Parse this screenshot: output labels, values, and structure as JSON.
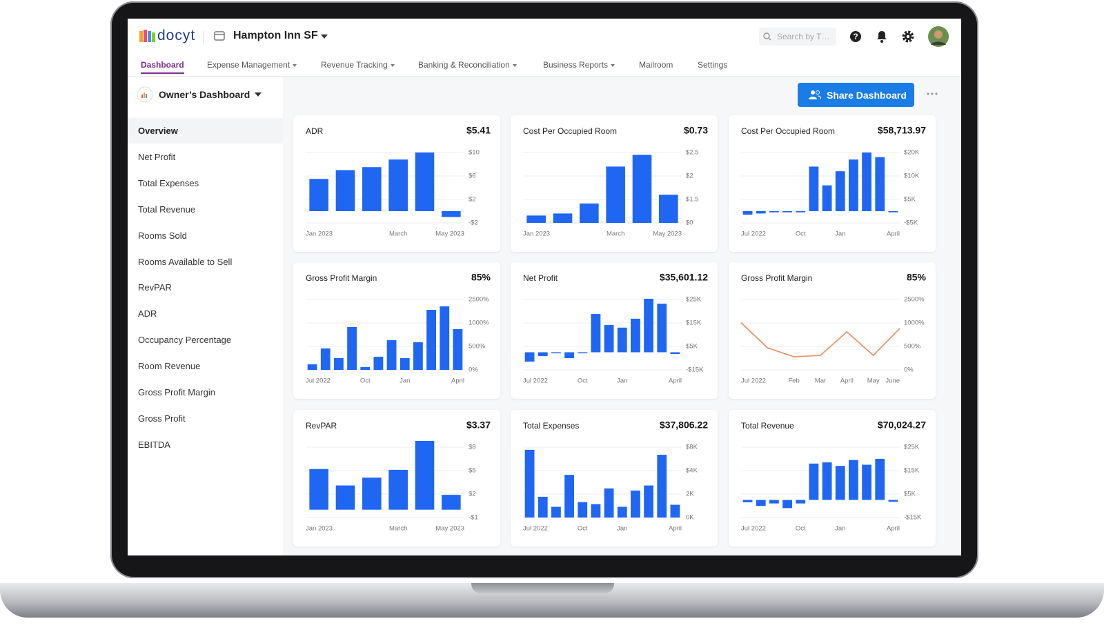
{
  "header": {
    "brand": "docyt",
    "property": "Hampton Inn SF",
    "search_placeholder": "Search by T…"
  },
  "nav": [
    "Dashboard",
    "Expense Management",
    "Revenue Tracking",
    "Banking & Reconciliation",
    "Business Reports",
    "Mailroom",
    "Settings"
  ],
  "sidebar": {
    "dashboard": "Owner’s Dashboard",
    "items": [
      "Overview",
      "Net Profit",
      "Total Expenses",
      "Total Revenue",
      "Rooms Sold",
      "Rooms Available to Sell",
      "RevPAR",
      "ADR",
      "Occupancy Percentage",
      "Room Revenue",
      "Gross Profit Margin",
      "Gross Profit",
      "EBITDA"
    ]
  },
  "toolbar": {
    "share": "Share Dashboard"
  },
  "cards": [
    {
      "type": "bar",
      "title": "ADR",
      "headline": "$5.41",
      "color": "#1f66f2",
      "categories": [
        "Jan 2023",
        null,
        null,
        "March",
        null,
        "May 2023"
      ],
      "values": [
        5.5,
        7,
        7.5,
        8.8,
        10,
        -1
      ],
      "ylim": [
        -2,
        10
      ],
      "yticks": [
        {
          "value": 10,
          "label": "$10"
        },
        {
          "value": 6,
          "label": "$6"
        },
        {
          "value": 2,
          "label": "$2"
        },
        {
          "value": -2,
          "label": "-$2"
        }
      ]
    },
    {
      "type": "bar",
      "title": "Cost Per Occupied Room",
      "headline": "$0.73",
      "color": "#1f66f2",
      "categories": [
        "Jan 2023",
        null,
        null,
        "March",
        null,
        "May 2023"
      ],
      "values": [
        0.47,
        0.6,
        1.24,
        2.2,
        2.45,
        1.6
      ],
      "ylim": [
        0,
        2.5
      ],
      "yticks": [
        {
          "value": 2.5,
          "label": "$2.5"
        },
        {
          "value": 2,
          "label": "$2"
        },
        {
          "value": 1.5,
          "label": "$1.5"
        },
        {
          "value": 0,
          "label": "$0"
        }
      ]
    },
    {
      "type": "bar",
      "title": "Cost Per Occupied Room",
      "headline": "$58,713.97",
      "color": "#1f66f2",
      "categories": [
        "Jul 2022",
        null,
        null,
        null,
        "Oct",
        null,
        null,
        "Jan",
        null,
        null,
        null,
        "April"
      ],
      "values": [
        -1500,
        -1000,
        -500,
        -500,
        -500,
        14000,
        8000,
        12000,
        17000,
        20000,
        18000,
        -500
      ],
      "ylim": [
        -5000,
        20000
      ],
      "yticks": [
        {
          "value": 20000,
          "label": "$20K"
        },
        {
          "value": 10000,
          "label": "$10K"
        },
        {
          "value": 5000,
          "label": "$5K"
        },
        {
          "value": -5000,
          "label": "-$5K"
        }
      ]
    },
    {
      "type": "bar",
      "title": "Gross Profit Margin",
      "headline": "85%",
      "color": "#1f66f2",
      "categories": [
        "Jul 2022",
        null,
        null,
        null,
        "Oct",
        null,
        null,
        "Jan",
        null,
        null,
        null,
        "April"
      ],
      "values": [
        118,
        456,
        250,
        912,
        60,
        279,
        632,
        250,
        588,
        1838,
        2059,
        868
      ],
      "ylim": [
        0,
        2500
      ],
      "yticks": [
        {
          "value": 2500,
          "label": "2500%"
        },
        {
          "value": 1000,
          "label": "1000%"
        },
        {
          "value": 500,
          "label": "500%"
        },
        {
          "value": 0,
          "label": "0%"
        }
      ]
    },
    {
      "type": "bar",
      "title": "Net Profit",
      "headline": "$35,601.12",
      "color": "#1f66f2",
      "categories": [
        "Jul 2022",
        null,
        null,
        null,
        "Oct",
        null,
        null,
        "Jan",
        null,
        null,
        null,
        "April"
      ],
      "values": [
        -8000,
        -3200,
        -900,
        -5000,
        -900,
        18800,
        14100,
        13000,
        16800,
        25300,
        23200,
        -1500
      ],
      "ylim": [
        -15000,
        25000
      ],
      "yticks": [
        {
          "value": 25000,
          "label": "$25K"
        },
        {
          "value": 15000,
          "label": "$15K"
        },
        {
          "value": 5000,
          "label": "$5K"
        },
        {
          "value": -15000,
          "label": "-$15K"
        }
      ]
    },
    {
      "type": "line",
      "title": "Gross Profit Margin",
      "headline": "85%",
      "color": "#e8956a",
      "categories": [
        "Jul 2022",
        null,
        "Feb",
        "Mar",
        "April",
        "May",
        "June"
      ],
      "values": [
        1020,
        470,
        279,
        309,
        809,
        309,
        882
      ],
      "ylim": [
        0,
        2500
      ],
      "yticks": [
        {
          "value": 2500,
          "label": "2500%"
        },
        {
          "value": 1000,
          "label": "1000%"
        },
        {
          "value": 500,
          "label": "500%"
        },
        {
          "value": 0,
          "label": "0%"
        }
      ]
    },
    {
      "type": "bar",
      "title": "RevPAR",
      "headline": "$3.37",
      "color": "#1f66f2",
      "categories": [
        "Jan 2023",
        null,
        null,
        "March",
        null,
        "May 2023"
      ],
      "values": [
        5.2,
        3.1,
        4.1,
        5.1,
        8.8,
        1.9
      ],
      "ylim": [
        -1,
        8
      ],
      "yticks": [
        {
          "value": 8,
          "label": "$8"
        },
        {
          "value": 5,
          "label": "$5"
        },
        {
          "value": 2,
          "label": "$2"
        },
        {
          "value": -1,
          "label": "-$1"
        }
      ]
    },
    {
      "type": "bar",
      "title": "Total Expenses",
      "headline": "$37,806.22",
      "color": "#1f66f2",
      "categories": [
        "Jul 2022",
        null,
        null,
        null,
        "Oct",
        null,
        null,
        "Jan",
        null,
        null,
        null,
        "April"
      ],
      "values": [
        7530,
        1770,
        914,
        3640,
        1314,
        1143,
        2480,
        914,
        2300,
        2730,
        6700,
        1086
      ],
      "ylim": [
        0,
        8000
      ],
      "yticks": [
        {
          "value": 8000,
          "label": "$8K"
        },
        {
          "value": 4000,
          "label": "$4K"
        },
        {
          "value": 2000,
          "label": "2K"
        },
        {
          "value": 0,
          "label": "0K"
        }
      ]
    },
    {
      "type": "bar",
      "title": "Total Revenue",
      "headline": "$70,024.27",
      "color": "#1f66f2",
      "categories": [
        "Jul 2022",
        null,
        null,
        null,
        "Oct",
        null,
        null,
        "Jan",
        null,
        null,
        null,
        "April"
      ],
      "values": [
        -2000,
        -5000,
        -3000,
        -7000,
        -3000,
        18000,
        18500,
        17000,
        19500,
        17500,
        20000,
        -1500
      ],
      "ylim": [
        -15000,
        25000
      ],
      "yticks": [
        {
          "value": 25000,
          "label": "$25K"
        },
        {
          "value": 15000,
          "label": "$15K"
        },
        {
          "value": 5000,
          "label": "$5K"
        },
        {
          "value": -15000,
          "label": "-$15K"
        }
      ]
    }
  ]
}
